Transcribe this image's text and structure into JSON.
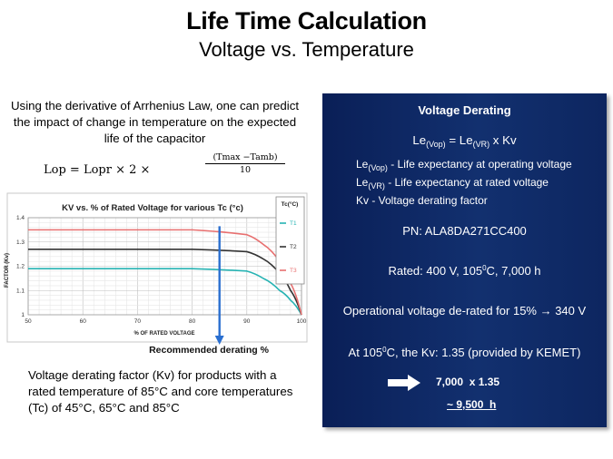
{
  "slide": {
    "title": "Life Time Calculation",
    "subtitle": "Voltage vs. Temperature"
  },
  "intro": {
    "text": "Using the derivative of Arrhenius Law, one can predict the impact of change in temperature on the expected life of the capacitor"
  },
  "formula": {
    "base": "Lop = Lopr × 2 ×",
    "numerator": "(Tmax −Tamb)",
    "denominator": "10"
  },
  "chart_data": {
    "type": "line",
    "title": "KV vs. % of Rated Voltage for various Tc (°c)",
    "xlabel": "% OF RATED VOLTAGE",
    "ylabel": "FACTOR (Kv)",
    "xlim": [
      50,
      100
    ],
    "ylim": [
      1.0,
      1.4
    ],
    "x_ticks": [
      "50",
      "60",
      "70",
      "80",
      "90",
      "100"
    ],
    "y_ticks": [
      "1",
      "1.1",
      "1.2",
      "1.3",
      "1.4"
    ],
    "grid": true,
    "legend_title": "Tc(°C)",
    "legend_position": "right",
    "series": [
      {
        "name": "T1",
        "color": "#26b3b3",
        "points": [
          [
            50,
            1.19
          ],
          [
            80,
            1.19
          ],
          [
            90,
            1.18
          ],
          [
            93,
            1.15
          ],
          [
            96,
            1.1
          ],
          [
            98,
            1.06
          ],
          [
            100,
            1.0
          ]
        ]
      },
      {
        "name": "T2",
        "color": "#333333",
        "points": [
          [
            50,
            1.27
          ],
          [
            80,
            1.27
          ],
          [
            90,
            1.26
          ],
          [
            93,
            1.23
          ],
          [
            96,
            1.17
          ],
          [
            98,
            1.1
          ],
          [
            100,
            1.0
          ]
        ]
      },
      {
        "name": "T3",
        "color": "#e87070",
        "points": [
          [
            50,
            1.35
          ],
          [
            80,
            1.35
          ],
          [
            90,
            1.33
          ],
          [
            93,
            1.29
          ],
          [
            96,
            1.22
          ],
          [
            98,
            1.13
          ],
          [
            100,
            1.0
          ]
        ]
      }
    ],
    "marker": {
      "x": 85,
      "label": "Recommended derating %",
      "color": "#2a6fd0"
    }
  },
  "bottom": {
    "text": "Voltage derating factor (Kv) for products with a rated temperature of 85°C and core temperatures (Tc) of 45°C, 65°C and 85°C"
  },
  "panel": {
    "heading": "Voltage Derating",
    "equation": {
      "le": "Le",
      "vop": "(Vop)",
      "eq": " = Le",
      "vr": "(VR)",
      "tail": " x Kv"
    },
    "defs": [
      {
        "le": "Le",
        "sub": "(Vop)",
        "text": " - Life expectancy at operating voltage"
      },
      {
        "le": "Le",
        "sub": "(VR)",
        "text": " - Life expectancy at rated voltage"
      },
      {
        "le": "",
        "sub": "",
        "text": "Kv - Voltage derating factor"
      }
    ],
    "pn": "PN: ALA8DA271CC400",
    "rated": {
      "pre": "Rated: 400 V, 105",
      "sup": "0",
      "post": "C, 7,000 h"
    },
    "operational": "Operational voltage de-rated for 15% → 340 V",
    "kv": {
      "pre": "At 105",
      "sup": "0",
      "post": "C, the Kv: 1.35 (provided by KEMET)"
    },
    "calc": "7,000  x 1.35",
    "approx": "~ 9,500  h",
    "arrow_color": "#ffffff"
  }
}
